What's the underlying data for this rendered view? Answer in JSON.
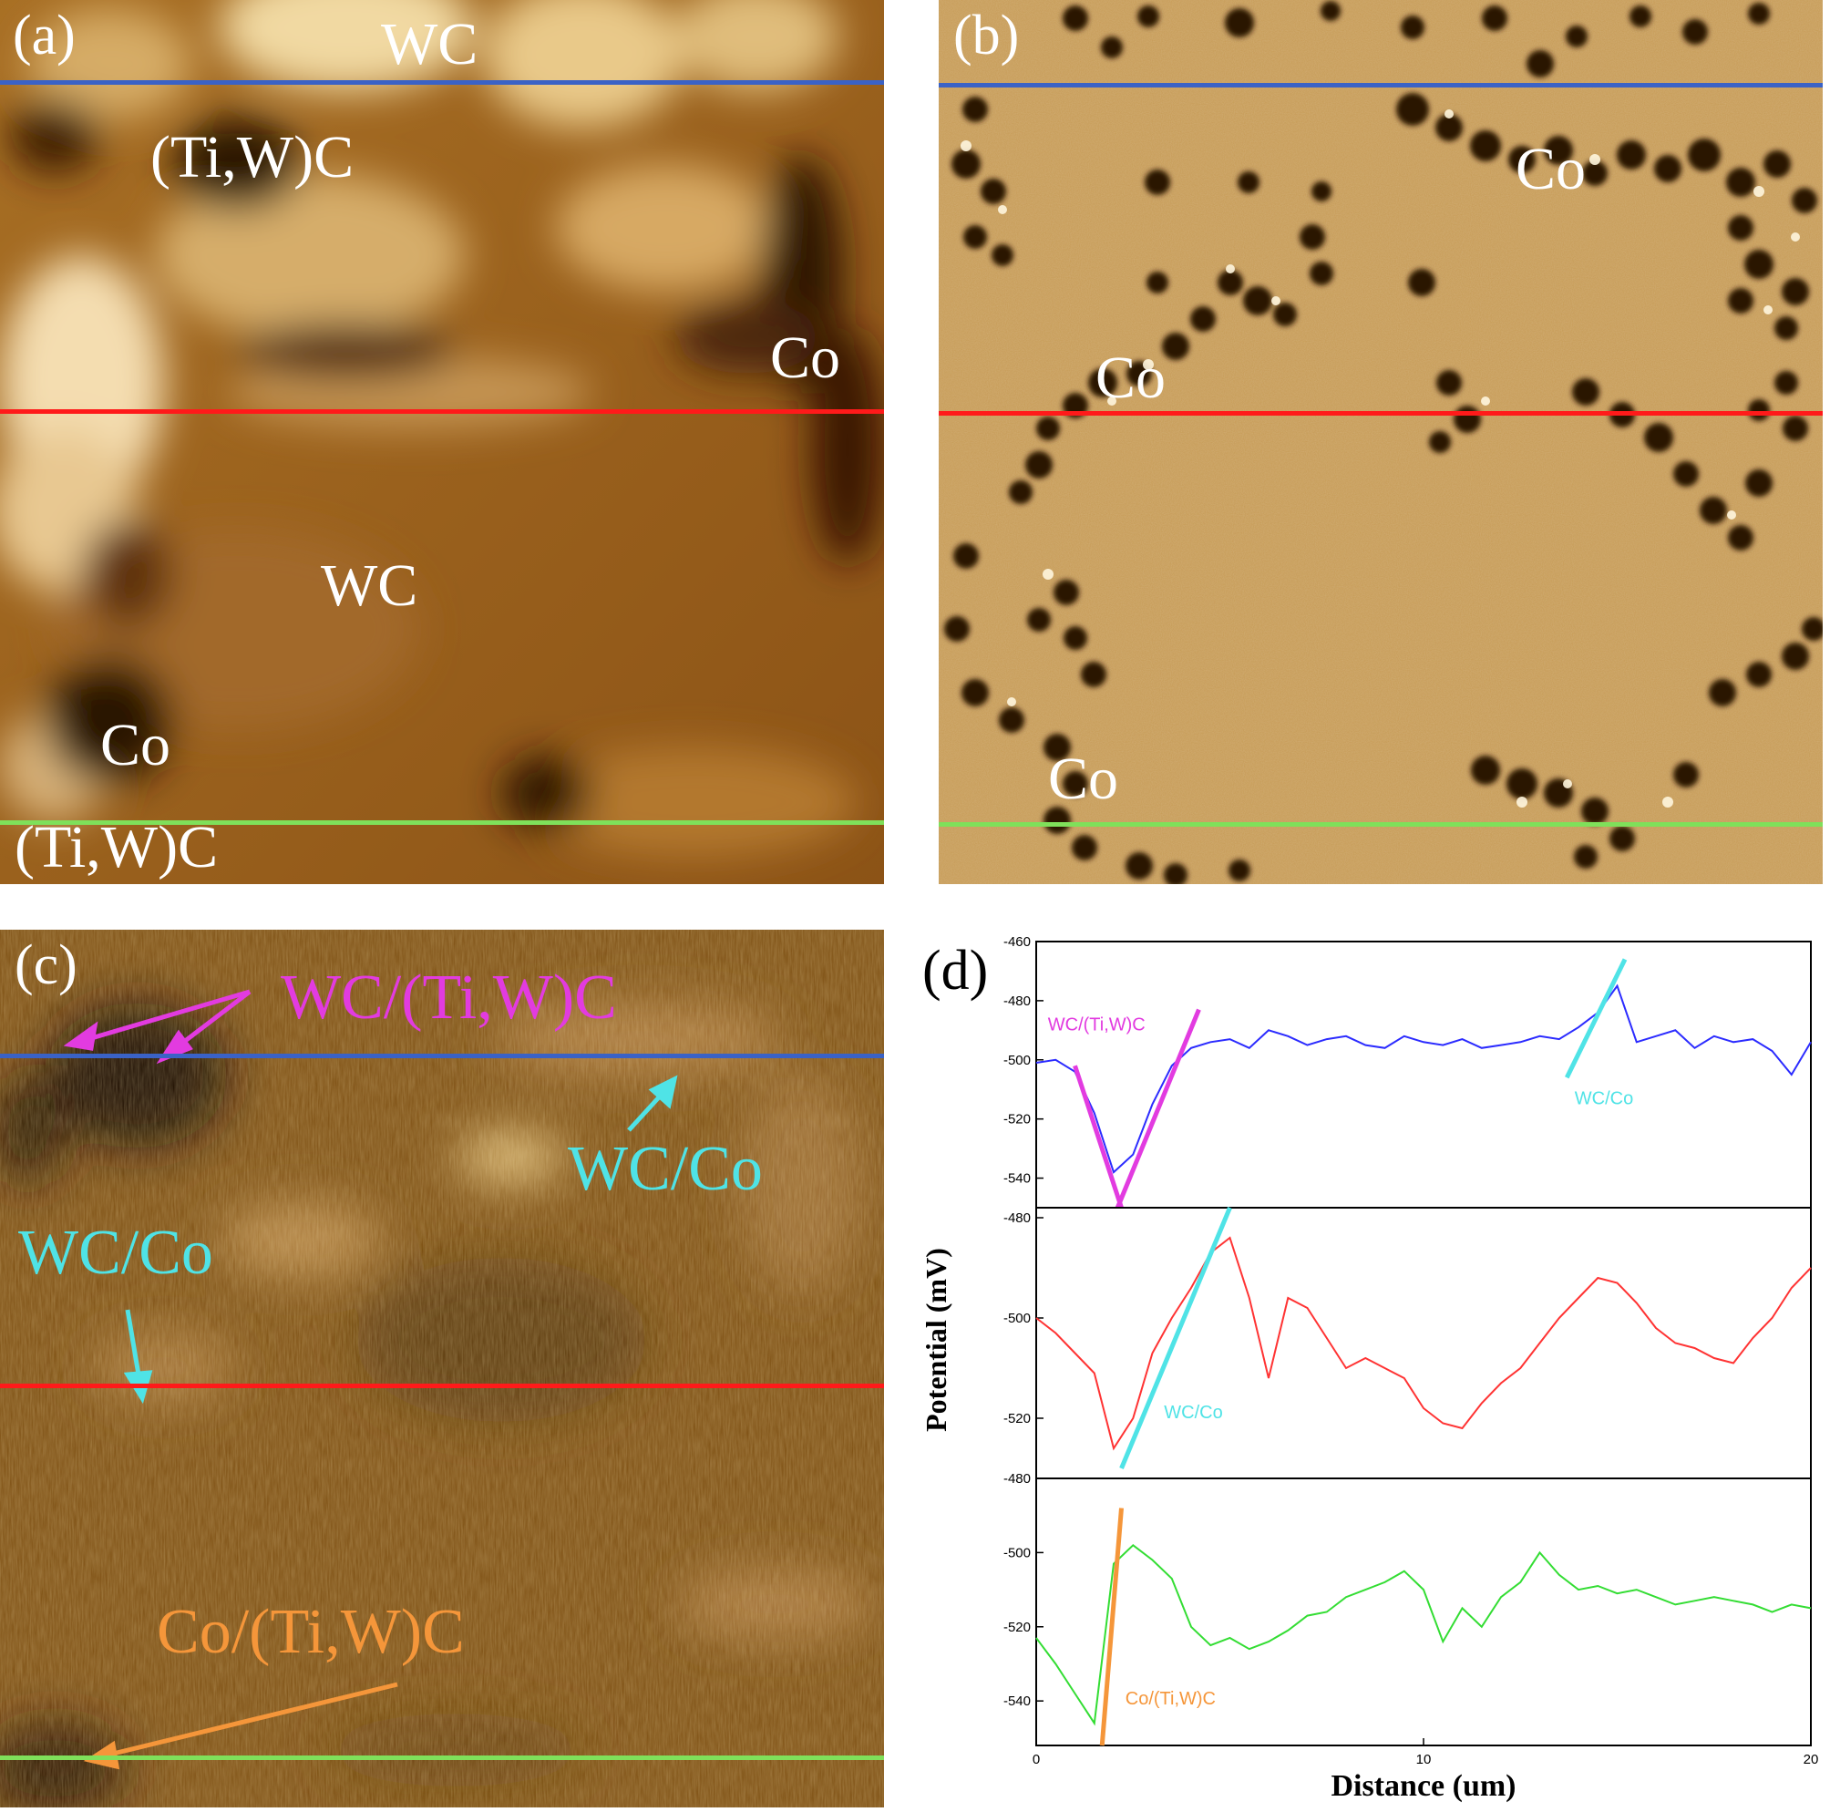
{
  "panels": {
    "a": {
      "label": "(a)",
      "phase_labels": [
        "WC",
        "(Ti,W)C",
        "Co",
        "WC",
        "Co",
        "(Ti,W)C"
      ]
    },
    "b": {
      "label": "(b)",
      "phase_labels": [
        "Co",
        "Co",
        "Co"
      ]
    },
    "c": {
      "label": "(c)",
      "annotations": [
        {
          "text": "WC/(Ti,W)C",
          "color": "#e23be0"
        },
        {
          "text": "WC/Co",
          "color": "#4fe3e6"
        },
        {
          "text": "WC/Co",
          "color": "#4fe3e6"
        },
        {
          "text": "Co/(Ti,W)C",
          "color": "#f5963a"
        }
      ]
    },
    "d": {
      "label": "(d)"
    }
  },
  "colors": {
    "blue_line": "#3a62c6",
    "red_line": "#ff1a1a",
    "green_line": "#7fe05a",
    "magenta": "#e23be0",
    "cyan": "#4fe3e6",
    "orange": "#f5963a"
  },
  "chart_data": {
    "type": "line",
    "xlabel": "Distance (um)",
    "ylabel": "Potential (mV)",
    "xlim": [
      0,
      20
    ],
    "x_ticks": [
      "0",
      "10",
      "20"
    ],
    "subplots": [
      {
        "line_color": "#2b2bff",
        "ylim": [
          -550,
          -460
        ],
        "y_ticks": [
          "-460",
          "-480",
          "-500",
          "-520",
          "-540"
        ],
        "x": [
          0,
          0.5,
          1,
          1.5,
          2,
          2.5,
          3,
          3.5,
          4,
          4.5,
          5,
          5.5,
          6,
          6.5,
          7,
          7.5,
          8,
          8.5,
          9,
          9.5,
          10,
          10.5,
          11,
          11.5,
          12,
          12.5,
          13,
          13.5,
          14,
          14.5,
          15,
          15.5,
          16,
          16.5,
          17,
          17.5,
          18,
          18.5,
          19,
          19.5,
          20
        ],
        "y": [
          -501,
          -500,
          -504,
          -518,
          -538,
          -532,
          -515,
          -502,
          -496,
          -494,
          -493,
          -496,
          -490,
          -492,
          -495,
          -493,
          -492,
          -495,
          -496,
          -492,
          -494,
          -495,
          -493,
          -496,
          -495,
          -494,
          -492,
          -493,
          -489,
          -484,
          -475,
          -494,
          -492,
          -490,
          -496,
          -492,
          -494,
          -493,
          -497,
          -505,
          -494
        ],
        "annotations": [
          {
            "text": "WC/(Ti,W)C",
            "color": "#e23be0"
          },
          {
            "text": "WC/Co",
            "color": "#4fe3e6"
          }
        ]
      },
      {
        "line_color": "#ff3333",
        "ylim": [
          -532,
          -478
        ],
        "y_ticks": [
          "-480",
          "-500",
          "-520"
        ],
        "x": [
          0,
          0.5,
          1,
          1.5,
          2,
          2.5,
          3,
          3.5,
          4,
          4.5,
          5,
          5.5,
          6,
          6.5,
          7,
          7.5,
          8,
          8.5,
          9,
          9.5,
          10,
          10.5,
          11,
          11.5,
          12,
          12.5,
          13,
          13.5,
          14,
          14.5,
          15,
          15.5,
          16,
          16.5,
          17,
          17.5,
          18,
          18.5,
          19,
          19.5,
          20
        ],
        "y": [
          -500,
          -503,
          -507,
          -511,
          -526,
          -520,
          -507,
          -500,
          -494,
          -487,
          -484,
          -496,
          -512,
          -496,
          -498,
          -504,
          -510,
          -508,
          -510,
          -512,
          -518,
          -521,
          -522,
          -517,
          -513,
          -510,
          -505,
          -500,
          -496,
          -492,
          -493,
          -497,
          -502,
          -505,
          -506,
          -508,
          -509,
          -504,
          -500,
          -494,
          -490
        ],
        "annotations": [
          {
            "text": "WC/Co",
            "color": "#4fe3e6"
          }
        ]
      },
      {
        "line_color": "#33dd33",
        "ylim": [
          -552,
          -480
        ],
        "y_ticks": [
          "-480",
          "-500",
          "-520",
          "-540"
        ],
        "x": [
          0,
          0.5,
          1,
          1.5,
          2,
          2.5,
          3,
          3.5,
          4,
          4.5,
          5,
          5.5,
          6,
          6.5,
          7,
          7.5,
          8,
          8.5,
          9,
          9.5,
          10,
          10.5,
          11,
          11.5,
          12,
          12.5,
          13,
          13.5,
          14,
          14.5,
          15,
          15.5,
          16,
          16.5,
          17,
          17.5,
          18,
          18.5,
          19,
          19.5,
          20
        ],
        "y": [
          -523,
          -530,
          -538,
          -546,
          -503,
          -498,
          -502,
          -507,
          -520,
          -525,
          -523,
          -526,
          -524,
          -521,
          -517,
          -516,
          -512,
          -510,
          -508,
          -505,
          -510,
          -524,
          -515,
          -520,
          -512,
          -508,
          -500,
          -506,
          -510,
          -509,
          -511,
          -510,
          -512,
          -514,
          -513,
          -512,
          -513,
          -514,
          -516,
          -514,
          -515
        ],
        "annotations": [
          {
            "text": "Co/(Ti,W)C",
            "color": "#f5963a"
          }
        ]
      }
    ]
  }
}
